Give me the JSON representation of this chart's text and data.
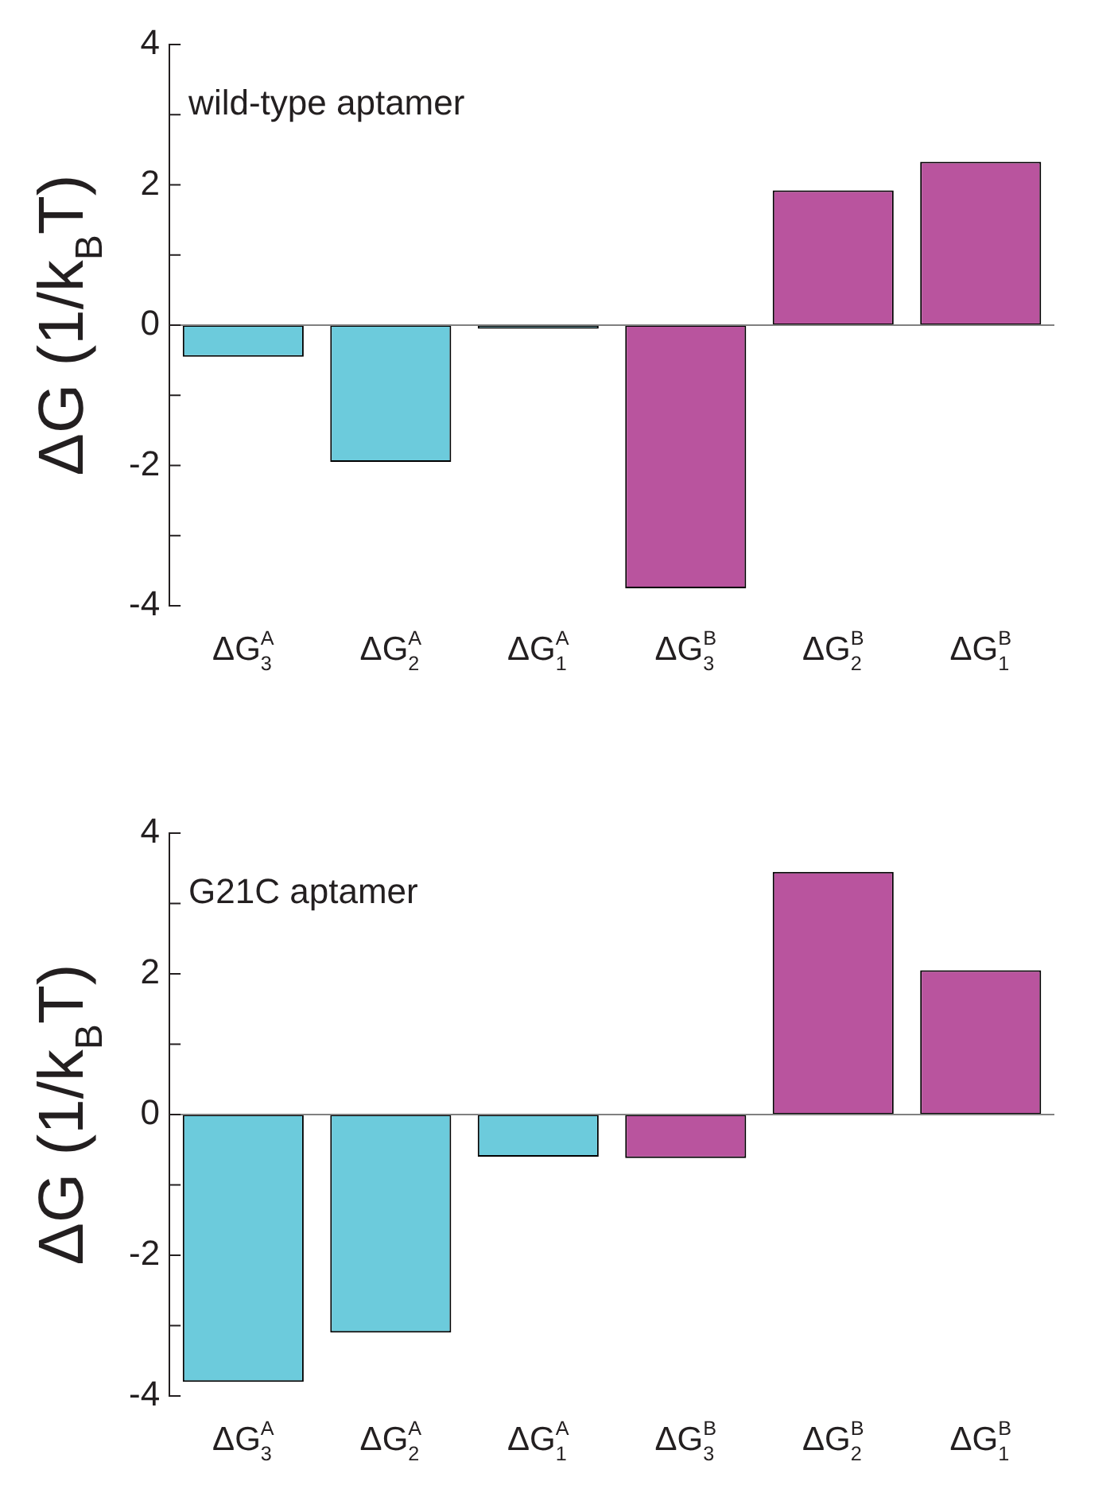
{
  "chart_data": [
    {
      "type": "bar",
      "title": "wild-type aptamer",
      "ylabel": "ΔG (1/k$_{B}$T)",
      "categories": [
        "ΔG$_{3}$$^{A}$",
        "ΔG$_{2}$$^{A}$",
        "ΔG$_{1}$$^{A}$",
        "ΔG$_{3}$$^{B}$",
        "ΔG$_{2}$$^{B}$",
        "ΔG$_{1}$$^{B}$"
      ],
      "values": [
        -0.45,
        -1.95,
        -0.05,
        -3.75,
        1.92,
        2.33
      ],
      "ref_lines": [
        {
          "axis": "y",
          "value": 0,
          "color": "#808080"
        }
      ],
      "colors": [
        "#6ccbdc",
        "#6ccbdc",
        "#6ccbdc",
        "#b9549e",
        "#b9549e",
        "#b9549e"
      ],
      "ylim": [
        -4,
        4
      ],
      "yticks": [
        -4,
        {
          "value": -3,
          "label": null
        },
        -2,
        {
          "value": -1,
          "label": null
        },
        0,
        {
          "value": 1,
          "label": null
        },
        2,
        {
          "value": 3,
          "label": null
        },
        4
      ],
      "grid": false
    },
    {
      "type": "bar",
      "title": "G21C aptamer",
      "ylabel": "ΔG (1/k$_{B}$T)",
      "categories": [
        "ΔG$_{3}$$^{A}$",
        "ΔG$_{2}$$^{A}$",
        "ΔG$_{1}$$^{A}$",
        "ΔG$_{3}$$^{B}$",
        "ΔG$_{2}$$^{B}$",
        "ΔG$_{1}$$^{B}$"
      ],
      "values": [
        -3.8,
        -3.1,
        -0.6,
        -0.62,
        3.45,
        2.05
      ],
      "ref_lines": [
        {
          "axis": "y",
          "value": 0,
          "color": "#808080"
        }
      ],
      "colors": [
        "#6ccbdc",
        "#6ccbdc",
        "#6ccbdc",
        "#b9549e",
        "#b9549e",
        "#b9549e"
      ],
      "ylim": [
        -4,
        4
      ],
      "yticks": [
        -4,
        {
          "value": -3,
          "label": null
        },
        -2,
        {
          "value": -1,
          "label": null
        },
        0,
        {
          "value": 1,
          "label": null
        },
        2,
        {
          "value": 3,
          "label": null
        },
        4
      ],
      "grid": false
    }
  ]
}
